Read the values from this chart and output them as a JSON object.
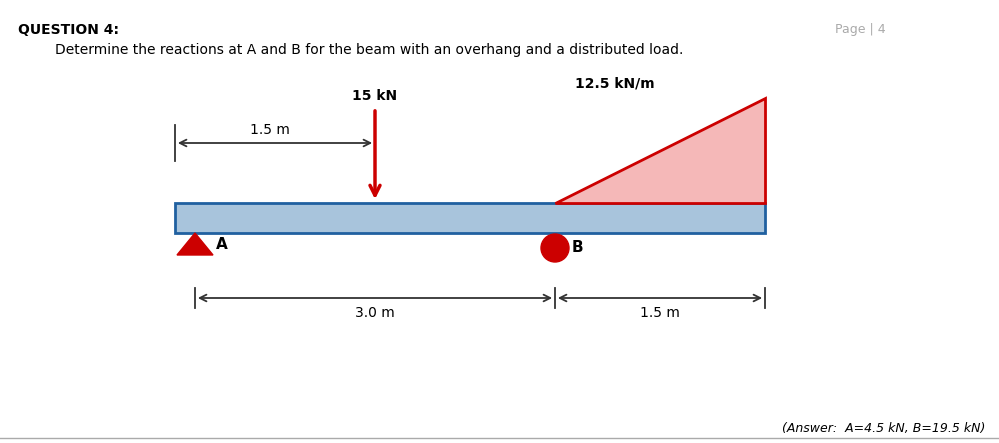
{
  "page_label": "Page | 4",
  "question_label": "QUESTION 4:",
  "question_text": "Determine the reactions at A and B for the beam with an overhang and a distributed load.",
  "answer_text": "(Answer:  A=4.5 kN, B=19.5 kN)",
  "beam_color": "#a8c4dc",
  "beam_edge_color": "#2060a0",
  "dist_load_fill": "#f5b8b8",
  "dist_load_edge": "#cc0000",
  "point_load_color": "#cc0000",
  "support_A_color": "#cc0000",
  "support_B_color": "#cc0000",
  "dim_line_color": "#333333",
  "text_color": "#000000",
  "page_color": "#aaaaaa",
  "label_15kN": "15 kN",
  "label_125kNm": "12.5 kN/m",
  "label_15m_top": "1.5 m",
  "label_30m": "3.0 m",
  "label_15m_bot": "1.5 m",
  "label_A": "A",
  "label_B": "B"
}
